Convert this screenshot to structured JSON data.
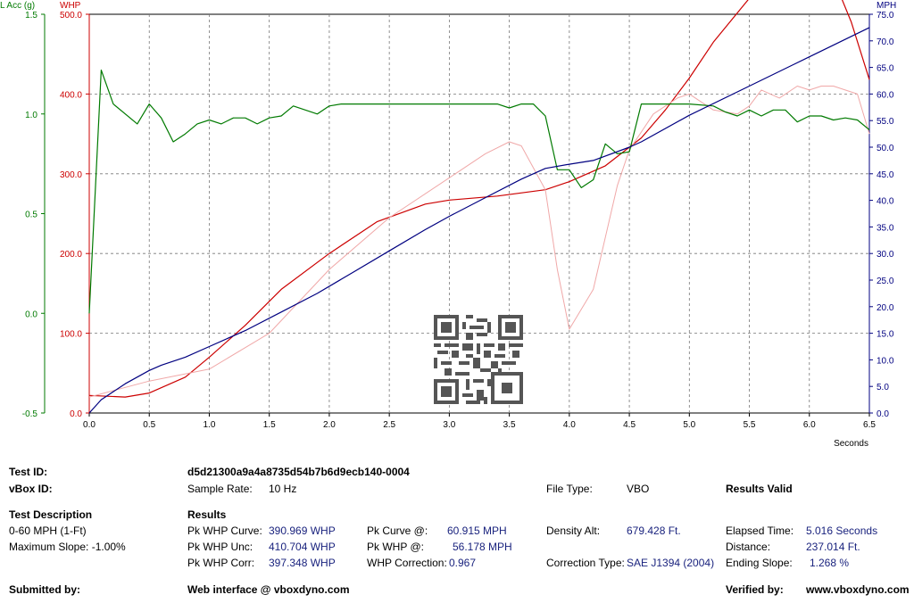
{
  "chart_data": {
    "type": "line",
    "x_unit_label": "Seconds",
    "x_range": [
      0,
      6.5
    ],
    "x_ticks": [
      "0.0",
      "0.5",
      "1.0",
      "1.5",
      "2.0",
      "2.5",
      "3.0",
      "3.5",
      "4.0",
      "4.5",
      "5.0",
      "5.5",
      "6.0",
      "6.5"
    ],
    "grid": true,
    "axes": {
      "lacc": {
        "label": "L Acc (g)",
        "range": [
          -0.5,
          1.5
        ],
        "ticks": [
          "1.5",
          "1.0",
          "0.5",
          "0.0",
          "-0.5"
        ],
        "color": "#007a00"
      },
      "whp": {
        "label": "WHP",
        "range": [
          0,
          500
        ],
        "ticks": [
          "500.0",
          "400.0",
          "300.0",
          "200.0",
          "100.0",
          "0.0"
        ],
        "color": "#cc0000"
      },
      "mph": {
        "label": "MPH",
        "range": [
          0,
          75
        ],
        "ticks": [
          "75.0",
          "70.0",
          "65.0",
          "60.0",
          "55.0",
          "50.0",
          "45.0",
          "40.0",
          "35.0",
          "30.0",
          "25.0",
          "20.0",
          "15.0",
          "10.0",
          "5.0",
          "0.0"
        ],
        "color": "#000080"
      }
    },
    "series": [
      {
        "axis": "whp",
        "color": "#cc0000",
        "x": [
          0,
          0.3,
          0.5,
          0.8,
          1.0,
          1.3,
          1.6,
          2.0,
          2.4,
          2.8,
          3.0,
          3.4,
          3.8,
          4.0,
          4.3,
          4.6,
          4.8,
          5.0,
          5.2,
          5.5,
          5.7,
          5.9,
          6.0,
          6.2,
          6.35,
          6.5
        ],
        "y": [
          22,
          20,
          25,
          45,
          70,
          110,
          155,
          200,
          240,
          262,
          267,
          272,
          280,
          290,
          310,
          345,
          380,
          420,
          465,
          520,
          555,
          573,
          570,
          545,
          490,
          418
        ]
      },
      {
        "axis": "whp",
        "color": "#f0a8a8",
        "x": [
          0,
          0.5,
          1.0,
          1.5,
          2.0,
          2.5,
          3.0,
          3.3,
          3.5,
          3.6,
          3.8,
          3.9,
          4.0,
          4.2,
          4.4,
          4.5,
          4.7,
          4.9,
          5.0,
          5.2,
          5.4,
          5.5,
          5.6,
          5.75,
          5.9,
          6.0,
          6.1,
          6.2,
          6.4,
          6.5
        ],
        "y": [
          20,
          40,
          55,
          100,
          180,
          245,
          295,
          325,
          340,
          335,
          280,
          180,
          105,
          155,
          285,
          330,
          375,
          395,
          400,
          380,
          375,
          385,
          405,
          395,
          410,
          405,
          410,
          410,
          400,
          350
        ]
      },
      {
        "axis": "lacc",
        "color": "#007a00",
        "x": [
          0,
          0.1,
          0.2,
          0.4,
          0.5,
          0.6,
          0.7,
          0.8,
          0.9,
          1.0,
          1.1,
          1.2,
          1.3,
          1.4,
          1.5,
          1.6,
          1.7,
          1.9,
          2.0,
          2.1,
          2.3,
          2.5,
          2.7,
          2.8,
          3.0,
          3.2,
          3.4,
          3.5,
          3.6,
          3.7,
          3.8,
          3.9,
          4.0,
          4.1,
          4.2,
          4.3,
          4.4,
          4.5,
          4.6,
          4.8,
          5.0,
          5.2,
          5.3,
          5.4,
          5.5,
          5.6,
          5.7,
          5.8,
          5.9,
          6.0,
          6.1,
          6.2,
          6.3,
          6.4,
          6.5
        ],
        "y": [
          0.0,
          1.22,
          1.05,
          0.95,
          1.05,
          0.98,
          0.86,
          0.9,
          0.95,
          0.97,
          0.95,
          0.98,
          0.98,
          0.95,
          0.98,
          0.99,
          1.04,
          1.0,
          1.04,
          1.05,
          1.05,
          1.05,
          1.05,
          1.05,
          1.05,
          1.05,
          1.05,
          1.03,
          1.05,
          1.05,
          0.99,
          0.72,
          0.72,
          0.63,
          0.67,
          0.85,
          0.8,
          0.81,
          1.05,
          1.05,
          1.05,
          1.04,
          1.01,
          0.99,
          1.02,
          0.99,
          1.02,
          1.02,
          0.96,
          0.99,
          0.99,
          0.97,
          0.98,
          0.97,
          0.92
        ]
      },
      {
        "axis": "mph",
        "color": "#000080",
        "x": [
          0,
          0.1,
          0.3,
          0.5,
          0.6,
          0.8,
          1.0,
          1.3,
          1.6,
          1.9,
          2.2,
          2.5,
          2.8,
          3.0,
          3.3,
          3.6,
          3.8,
          4.0,
          4.2,
          4.5,
          4.6,
          5.0,
          5.5,
          6.0,
          6.5
        ],
        "y": [
          0,
          2.5,
          5.5,
          8,
          9,
          10.5,
          12.5,
          15.5,
          19,
          22.5,
          26.5,
          30.5,
          34.5,
          37,
          40.5,
          44,
          46,
          46.8,
          47.5,
          50,
          51,
          56,
          61.5,
          67,
          72.5
        ]
      }
    ]
  },
  "info": {
    "test_id_label": "Test ID:",
    "test_id_value": "d5d21300a9a4a8735d54b7b6d9ecb140-0004",
    "vbox_id_label": "vBox ID:",
    "sample_rate_label": "Sample Rate:",
    "sample_rate_value": "10 Hz",
    "file_type_label": "File Type:",
    "file_type_value": "VBO",
    "results_valid": "Results Valid",
    "test_desc_label": "Test Description",
    "test_desc_1": "0-60 MPH (1-Ft)",
    "test_desc_2": "Maximum Slope:  -1.00%",
    "results_label": "Results",
    "pk_whp_curve_label": "Pk WHP Curve:",
    "pk_whp_curve_value": "390.969 WHP",
    "pk_whp_unc_label": "Pk WHP Unc:",
    "pk_whp_unc_value": "410.704 WHP",
    "pk_whp_corr_label": "Pk WHP Corr:",
    "pk_whp_corr_value": "397.348 WHP",
    "pk_curve_at_label": "Pk Curve @:",
    "pk_curve_at_value": "60.915 MPH",
    "pk_whp_at_label": "Pk WHP @:",
    "pk_whp_at_value": "56.178 MPH",
    "whp_correction_label": "WHP Correction:",
    "whp_correction_value": "0.967",
    "density_alt_label": "Density Alt:",
    "density_alt_value": "679.428 Ft.",
    "correction_type_label": "Correction Type:",
    "correction_type_value": "SAE J1394 (2004)",
    "elapsed_time_label": "Elapsed Time:",
    "elapsed_time_value": "5.016 Seconds",
    "distance_label": "Distance:",
    "distance_value": "237.014 Ft.",
    "ending_slope_label": "Ending Slope:",
    "ending_slope_value": "1.268 %",
    "submitted_by_label": "Submitted by:",
    "web_interface": "Web interface @ vboxdyno.com",
    "verified_by_label": "Verified by:",
    "verified_by_value": "www.vboxdyno.com"
  }
}
